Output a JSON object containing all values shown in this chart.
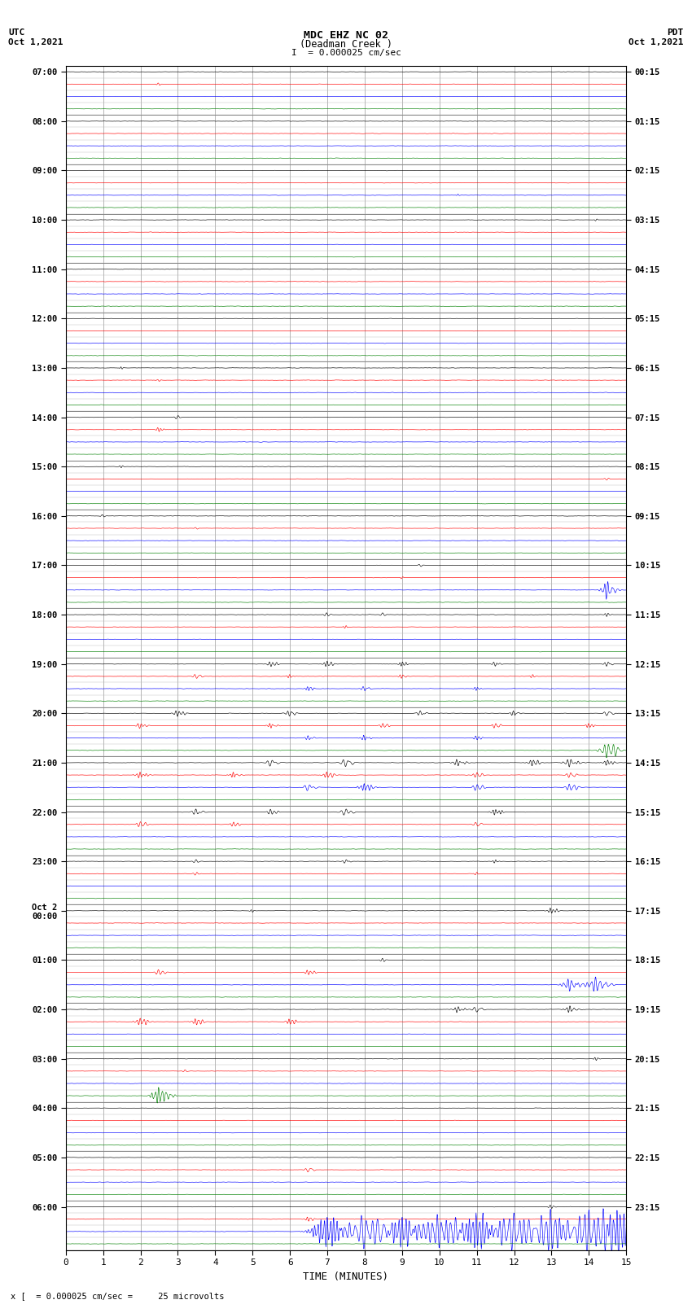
{
  "title_line1": "MDC EHZ NC 02",
  "title_line2": "(Deadman Creek )",
  "title_line3": "I  = 0.000025 cm/sec",
  "xlabel": "TIME (MINUTES)",
  "footer": "x [  = 0.000025 cm/sec =     25 microvolts",
  "bg_color": "#ffffff",
  "grid_color": "#aaaaaa",
  "trace_colors": [
    "black",
    "red",
    "blue",
    "green"
  ],
  "n_traces_per_hour": 4,
  "xlim": [
    0,
    15
  ],
  "xticks": [
    0,
    1,
    2,
    3,
    4,
    5,
    6,
    7,
    8,
    9,
    10,
    11,
    12,
    13,
    14,
    15
  ],
  "left_times": [
    "07:00",
    "08:00",
    "09:00",
    "10:00",
    "11:00",
    "12:00",
    "13:00",
    "14:00",
    "15:00",
    "16:00",
    "17:00",
    "18:00",
    "19:00",
    "20:00",
    "21:00",
    "22:00",
    "23:00",
    "Oct 2\n00:00",
    "01:00",
    "02:00",
    "03:00",
    "04:00",
    "05:00",
    "06:00"
  ],
  "right_times": [
    "00:15",
    "01:15",
    "02:15",
    "03:15",
    "04:15",
    "05:15",
    "06:15",
    "07:15",
    "08:15",
    "09:15",
    "10:15",
    "11:15",
    "12:15",
    "13:15",
    "14:15",
    "15:15",
    "16:15",
    "17:15",
    "18:15",
    "19:15",
    "20:15",
    "21:15",
    "22:15",
    "23:15"
  ],
  "n_hours": 24,
  "noise_base": 0.018,
  "noise_scale": 0.012
}
